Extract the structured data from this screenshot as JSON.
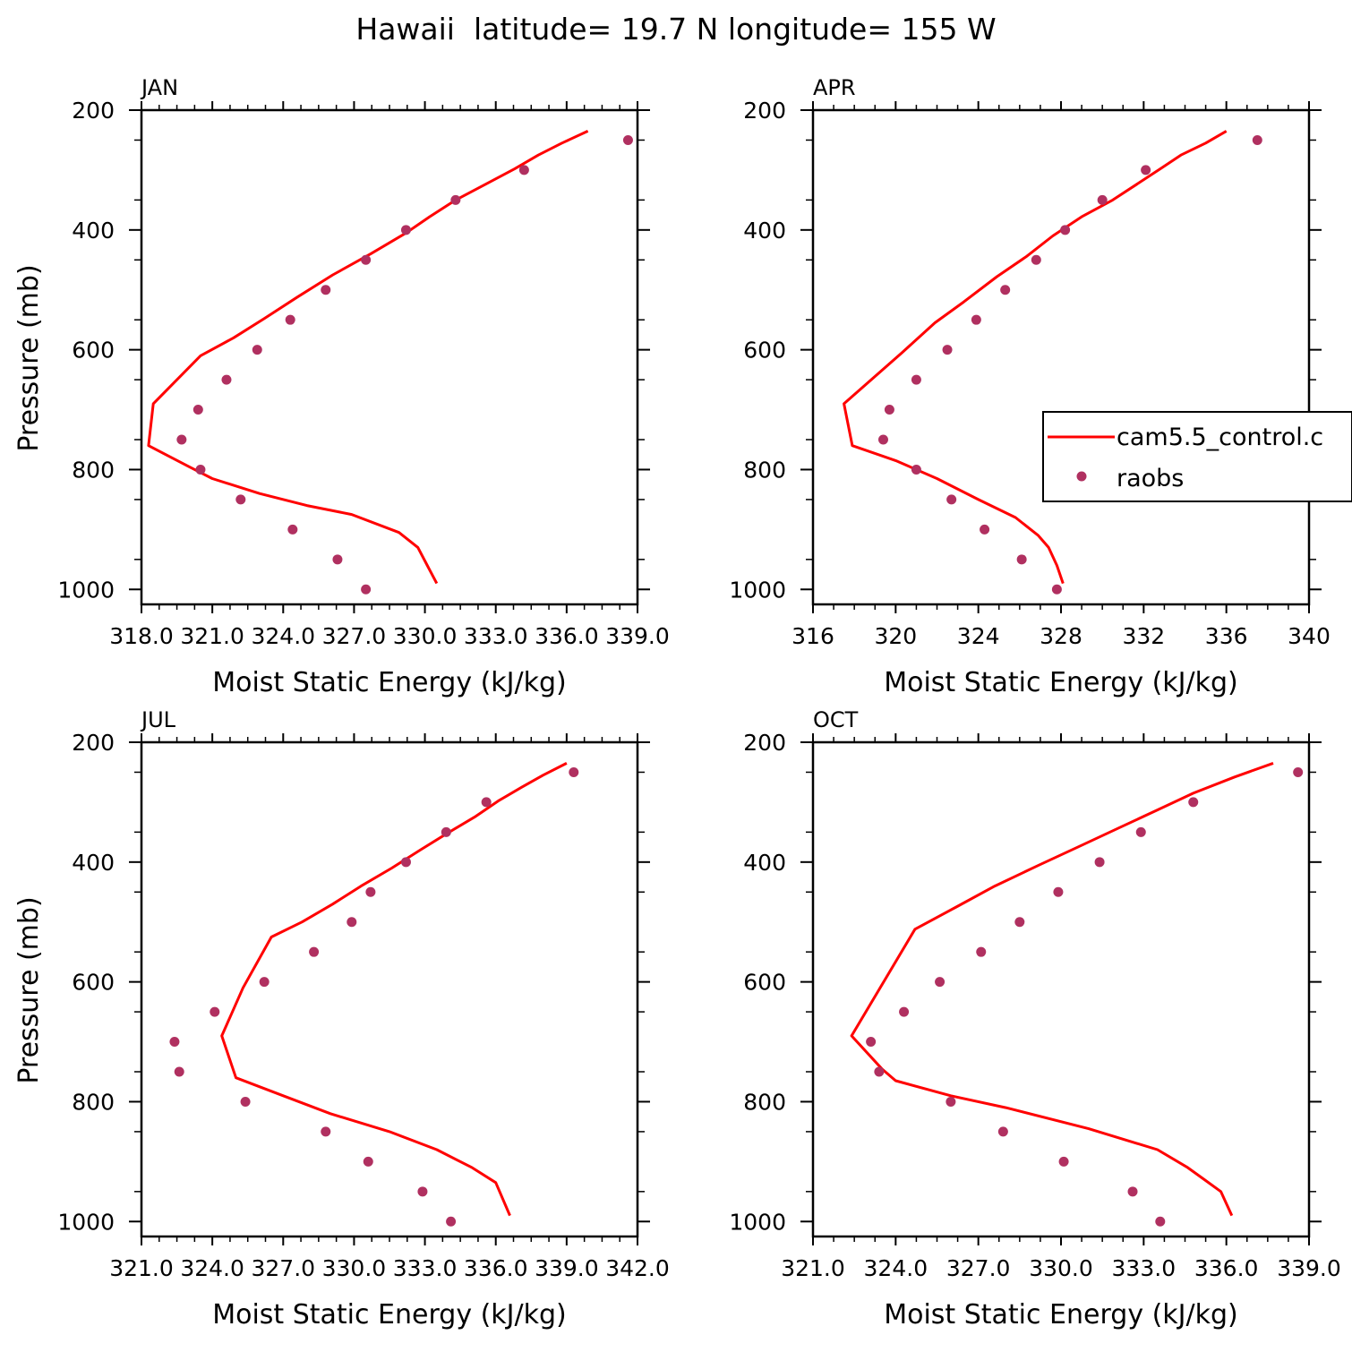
{
  "title": "Hawaii  latitude= 19.7 N longitude= 155 W",
  "colors": {
    "model": "#ff0000",
    "obs": "#b03060",
    "axis": "#000000"
  },
  "legend": {
    "model_label": "cam5.5_control.c",
    "obs_label": "raobs"
  },
  "chart_data": [
    {
      "type": "line",
      "panel_label": "JAN",
      "xlabel": "Moist Static Energy (kJ/kg)",
      "ylabel": "Pressure (mb)",
      "xlim": [
        318.0,
        339.0
      ],
      "ylim": [
        1025,
        200
      ],
      "x_ticks": [
        318.0,
        321.0,
        324.0,
        327.0,
        330.0,
        333.0,
        336.0,
        339.0
      ],
      "x_tick_labels": [
        "318.0",
        "321.0",
        "324.0",
        "327.0",
        "330.0",
        "333.0",
        "336.0",
        "339.0"
      ],
      "y_ticks": [
        200,
        400,
        600,
        800,
        1000
      ],
      "y_tick_labels": [
        "200",
        "400",
        "600",
        "800",
        "1000"
      ],
      "series": [
        {
          "name": "cam5.5_control.c",
          "style": "line",
          "x": [
            336.9,
            335.8,
            334.8,
            333.8,
            332.6,
            331.3,
            330.2,
            329.2,
            327.7,
            326.1,
            324.6,
            323.2,
            321.9,
            320.5,
            318.5,
            318.3,
            320.0,
            321.0,
            323.0,
            325.0,
            326.9,
            328.9,
            329.7,
            330.1,
            330.5
          ],
          "y": [
            235,
            255,
            275,
            298,
            323,
            350,
            378,
            405,
            440,
            475,
            512,
            548,
            580,
            610,
            690,
            760,
            795,
            815,
            840,
            860,
            875,
            905,
            930,
            960,
            990
          ]
        },
        {
          "name": "raobs",
          "style": "markers",
          "x": [
            338.6,
            334.2,
            331.3,
            329.2,
            327.5,
            325.8,
            324.3,
            322.9,
            321.6,
            320.4,
            319.7,
            320.5,
            322.2,
            324.4,
            326.3,
            327.5
          ],
          "y": [
            250,
            300,
            350,
            400,
            450,
            500,
            550,
            600,
            650,
            700,
            750,
            800,
            850,
            900,
            950,
            1000
          ]
        }
      ]
    },
    {
      "type": "line",
      "panel_label": "APR",
      "xlabel": "Moist Static Energy (kJ/kg)",
      "ylabel": "",
      "xlim": [
        316,
        340
      ],
      "ylim": [
        1025,
        200
      ],
      "x_ticks": [
        316,
        320,
        324,
        328,
        332,
        336,
        340
      ],
      "x_tick_labels": [
        "316",
        "320",
        "324",
        "328",
        "332",
        "336",
        "340"
      ],
      "y_ticks": [
        200,
        400,
        600,
        800,
        1000
      ],
      "y_tick_labels": [
        "200",
        "400",
        "600",
        "800",
        "1000"
      ],
      "legend_position": "right",
      "series": [
        {
          "name": "cam5.5_control.c",
          "style": "line",
          "x": [
            336.0,
            335.0,
            333.8,
            332.8,
            331.7,
            330.5,
            329.0,
            327.6,
            326.3,
            324.9,
            323.3,
            321.9,
            320.3,
            317.5,
            317.9,
            320.0,
            322.0,
            324.0,
            325.8,
            326.9,
            327.4,
            327.8,
            328.1
          ],
          "y": [
            235,
            255,
            275,
            298,
            323,
            350,
            378,
            410,
            445,
            478,
            520,
            555,
            605,
            690,
            760,
            785,
            815,
            850,
            880,
            910,
            930,
            960,
            990
          ]
        },
        {
          "name": "raobs",
          "style": "markers",
          "x": [
            337.5,
            332.1,
            330.0,
            328.2,
            326.8,
            325.3,
            323.9,
            322.5,
            321.0,
            319.7,
            319.4,
            321.0,
            322.7,
            324.3,
            326.1,
            327.8
          ],
          "y": [
            250,
            300,
            350,
            400,
            450,
            500,
            550,
            600,
            650,
            700,
            750,
            800,
            850,
            900,
            950,
            1000
          ]
        }
      ]
    },
    {
      "type": "line",
      "panel_label": "JUL",
      "xlabel": "Moist Static Energy (kJ/kg)",
      "ylabel": "Pressure (mb)",
      "xlim": [
        321.0,
        342.0
      ],
      "ylim": [
        1025,
        200
      ],
      "x_ticks": [
        321.0,
        324.0,
        327.0,
        330.0,
        333.0,
        336.0,
        339.0,
        342.0
      ],
      "x_tick_labels": [
        "321.0",
        "324.0",
        "327.0",
        "330.0",
        "333.0",
        "336.0",
        "339.0",
        "342.0"
      ],
      "y_ticks": [
        200,
        400,
        600,
        800,
        1000
      ],
      "y_tick_labels": [
        "200",
        "400",
        "600",
        "800",
        "1000"
      ],
      "series": [
        {
          "name": "cam5.5_control.c",
          "style": "line",
          "x": [
            339.0,
            338.0,
            337.1,
            336.1,
            335.1,
            333.9,
            332.8,
            331.6,
            330.3,
            329.1,
            327.8,
            326.5,
            325.3,
            324.4,
            325.0,
            327.0,
            329.0,
            331.5,
            333.5,
            335.0,
            336.0,
            336.6
          ],
          "y": [
            235,
            255,
            275,
            298,
            325,
            353,
            380,
            410,
            440,
            470,
            500,
            525,
            610,
            690,
            760,
            790,
            820,
            850,
            880,
            910,
            935,
            990
          ]
        },
        {
          "name": "raobs",
          "style": "markers",
          "x": [
            339.3,
            335.6,
            333.9,
            332.2,
            330.7,
            329.9,
            328.3,
            326.2,
            324.1,
            322.4,
            322.6,
            325.4,
            328.8,
            330.6,
            332.9,
            334.1
          ],
          "y": [
            250,
            300,
            350,
            400,
            450,
            500,
            550,
            600,
            650,
            700,
            750,
            800,
            850,
            900,
            950,
            1000
          ]
        }
      ]
    },
    {
      "type": "line",
      "panel_label": "OCT",
      "xlabel": "Moist Static Energy (kJ/kg)",
      "ylabel": "",
      "xlim": [
        321.0,
        339.0
      ],
      "ylim": [
        1025,
        200
      ],
      "x_ticks": [
        321.0,
        324.0,
        327.0,
        330.0,
        333.0,
        336.0,
        339.0
      ],
      "x_tick_labels": [
        "321.0",
        "324.0",
        "327.0",
        "330.0",
        "333.0",
        "336.0",
        "339.0"
      ],
      "y_ticks": [
        200,
        400,
        600,
        800,
        1000
      ],
      "y_tick_labels": [
        "200",
        "400",
        "600",
        "800",
        "1000"
      ],
      "series": [
        {
          "name": "cam5.5_control.c",
          "style": "line",
          "x": [
            337.7,
            336.3,
            334.8,
            333.5,
            332.1,
            330.7,
            329.2,
            327.6,
            326.2,
            324.7,
            322.4,
            323.5,
            324.0,
            326.0,
            328.0,
            331.0,
            333.5,
            334.6,
            335.2,
            335.8,
            336.2
          ],
          "y": [
            235,
            258,
            285,
            313,
            343,
            373,
            405,
            440,
            475,
            512,
            690,
            745,
            765,
            790,
            810,
            845,
            880,
            910,
            930,
            950,
            990
          ]
        },
        {
          "name": "raobs",
          "style": "markers",
          "x": [
            338.6,
            334.8,
            332.9,
            331.4,
            329.9,
            328.5,
            327.1,
            325.6,
            324.3,
            323.1,
            323.4,
            326.0,
            327.9,
            330.1,
            332.6,
            333.6
          ],
          "y": [
            250,
            300,
            350,
            400,
            450,
            500,
            550,
            600,
            650,
            700,
            750,
            800,
            850,
            900,
            950,
            1000
          ]
        }
      ]
    }
  ]
}
